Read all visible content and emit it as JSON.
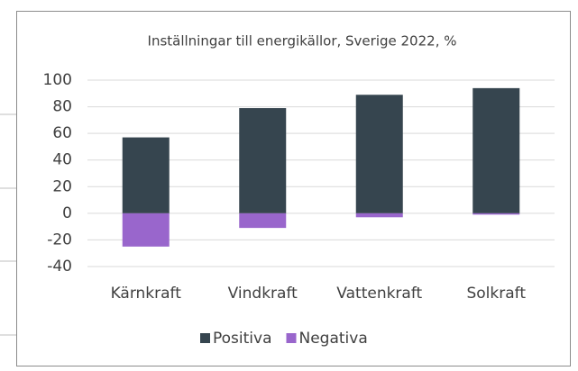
{
  "chart_data": {
    "type": "bar",
    "stacked": true,
    "title": "Inställningar till energikällor, Sverige 2022, %",
    "categories": [
      "Kärnkraft",
      "Vindkraft",
      "Vattenkraft",
      "Solkraft"
    ],
    "series": [
      {
        "name": "Positiva",
        "color": "#36454f",
        "values": [
          57,
          79,
          89,
          94
        ]
      },
      {
        "name": "Negativa",
        "color": "#9966cc",
        "values": [
          -25,
          -11,
          -3,
          -1
        ]
      }
    ],
    "ylim": [
      -40,
      100
    ],
    "yticks": [
      -40,
      -20,
      0,
      20,
      40,
      60,
      80,
      100
    ],
    "grid": true,
    "legend": "bottom"
  }
}
